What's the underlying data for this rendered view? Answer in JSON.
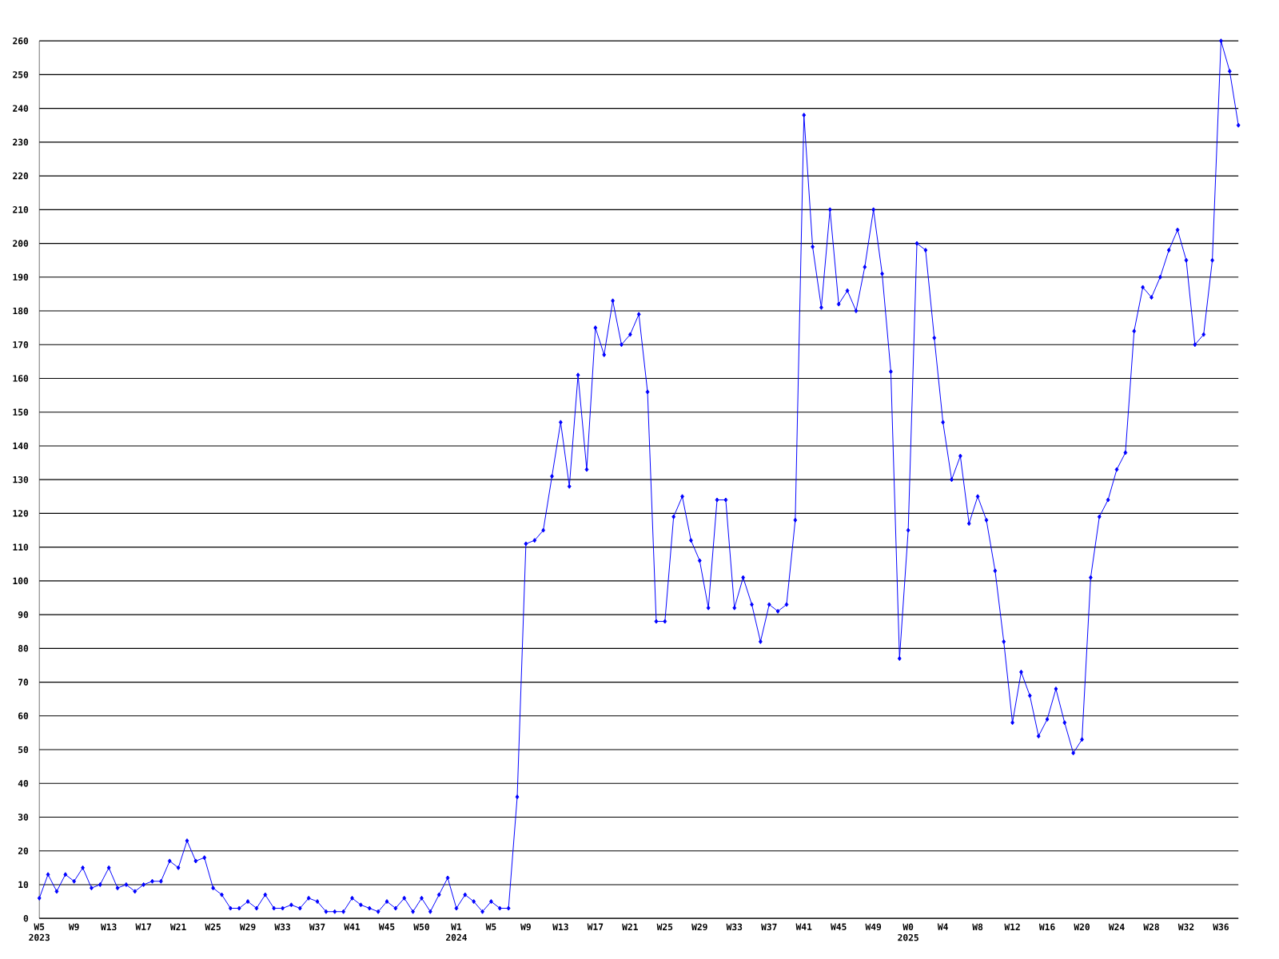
{
  "chart_data": {
    "type": "line",
    "categories": [
      "W5 2023",
      null,
      null,
      null,
      "W9",
      null,
      null,
      null,
      "W13",
      null,
      null,
      null,
      "W17",
      null,
      null,
      null,
      "W21",
      null,
      null,
      null,
      "W25",
      null,
      null,
      null,
      "W29",
      null,
      null,
      null,
      "W33",
      null,
      null,
      null,
      "W37",
      null,
      null,
      null,
      "W41",
      null,
      null,
      null,
      "W45",
      null,
      null,
      null,
      "W50",
      null,
      null,
      null,
      "W1 2024",
      null,
      null,
      null,
      "W5",
      null,
      null,
      null,
      "W9",
      null,
      null,
      null,
      "W13",
      null,
      null,
      null,
      "W17",
      null,
      null,
      null,
      "W21",
      null,
      null,
      null,
      "W25",
      null,
      null,
      null,
      "W29",
      null,
      null,
      null,
      "W33",
      null,
      null,
      null,
      "W37",
      null,
      null,
      null,
      "W41",
      null,
      null,
      null,
      "W45",
      null,
      null,
      null,
      "W49",
      null,
      null,
      null,
      "W0 2025",
      null,
      null,
      null,
      "W4",
      null,
      null,
      null,
      "W8",
      null,
      null,
      null,
      "W12",
      null,
      null,
      null,
      "W16",
      null,
      null,
      null,
      "W20",
      null,
      null,
      null,
      "W24",
      null,
      null,
      null,
      "W28",
      null,
      null,
      null,
      "W32",
      null,
      null,
      null,
      "W36",
      null,
      null
    ],
    "values": [
      6,
      13,
      8,
      13,
      11,
      15,
      9,
      10,
      15,
      9,
      10,
      8,
      10,
      11,
      11,
      17,
      15,
      23,
      17,
      18,
      9,
      7,
      3,
      3,
      5,
      3,
      7,
      3,
      3,
      4,
      3,
      6,
      5,
      2,
      2,
      2,
      6,
      4,
      3,
      2,
      5,
      3,
      6,
      2,
      6,
      2,
      7,
      12,
      3,
      7,
      5,
      2,
      5,
      3,
      3,
      36,
      111,
      112,
      115,
      131,
      147,
      128,
      161,
      133,
      175,
      167,
      183,
      170,
      173,
      179,
      156,
      88,
      88,
      119,
      125,
      112,
      106,
      92,
      124,
      124,
      92,
      101,
      93,
      82,
      93,
      91,
      93,
      118,
      238,
      199,
      181,
      210,
      182,
      186,
      180,
      193,
      210,
      191,
      162,
      77,
      115,
      200,
      198,
      172,
      147,
      130,
      137,
      117,
      125,
      118,
      103,
      82,
      58,
      73,
      66,
      54,
      59,
      68,
      58,
      49,
      53,
      101,
      119,
      124,
      133,
      138,
      174,
      187,
      184,
      190,
      198,
      204,
      195,
      170,
      173,
      195,
      260,
      251,
      235
    ],
    "color": "#0000ff",
    "ylim": [
      0,
      260
    ],
    "yticks": [
      0,
      10,
      20,
      30,
      40,
      50,
      60,
      70,
      80,
      90,
      100,
      110,
      120,
      130,
      140,
      150,
      160,
      170,
      180,
      190,
      200,
      210,
      220,
      230,
      240,
      250,
      260
    ],
    "grid": "y",
    "marker": "diamond",
    "line_style": "solid"
  }
}
